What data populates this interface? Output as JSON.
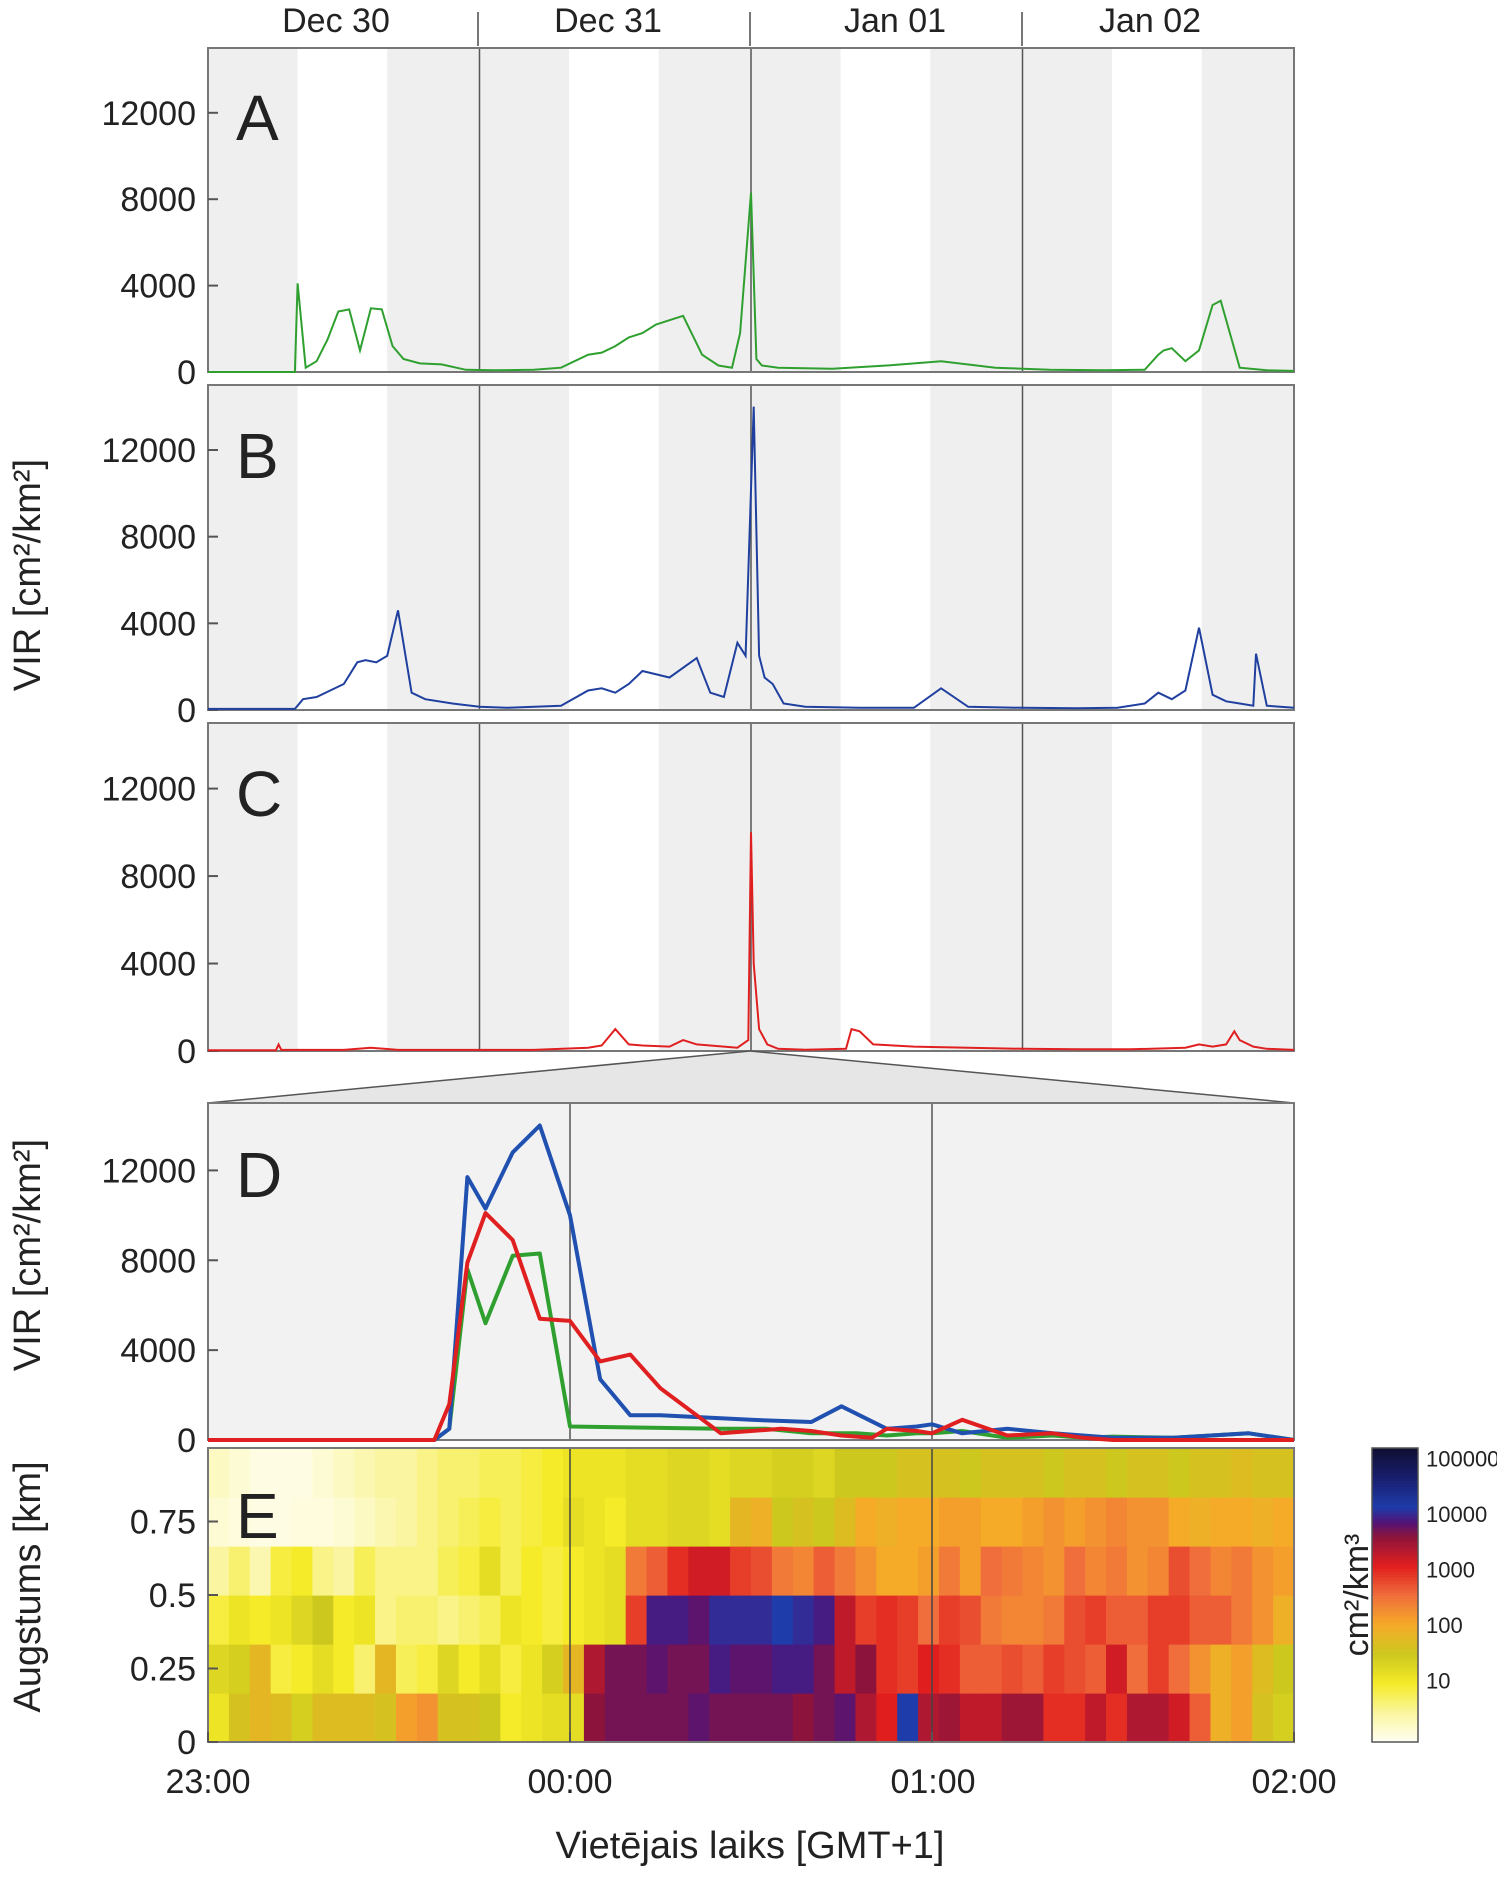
{
  "chart_data": [
    {
      "panel": "A",
      "type": "line",
      "ylim": [
        0,
        15000
      ],
      "yticks": [
        0,
        4000,
        8000,
        12000
      ],
      "x_unit": "day",
      "day_labels": [
        "Dec 30",
        "Dec 31",
        "Jan 01",
        "Jan 02"
      ],
      "shading": "alternating gray and white bands for night / day",
      "series": [
        {
          "color": "#2fa02f",
          "x": [
            0,
            0.32,
            0.33,
            0.36,
            0.4,
            0.44,
            0.48,
            0.52,
            0.56,
            0.6,
            0.64,
            0.68,
            0.72,
            0.78,
            0.86,
            0.95,
            1.05,
            1.2,
            1.3,
            1.4,
            1.45,
            1.5,
            1.55,
            1.6,
            1.65,
            1.7,
            1.75,
            1.82,
            1.88,
            1.93,
            1.96,
            2.0,
            2.02,
            2.04,
            2.1,
            2.3,
            2.5,
            2.7,
            2.9,
            3.1,
            3.3,
            3.45,
            3.5,
            3.52,
            3.55,
            3.6,
            3.65,
            3.7,
            3.73,
            3.8,
            3.9,
            4.0
          ],
          "y": [
            0,
            0,
            4100,
            200,
            500,
            1500,
            2800,
            2900,
            1000,
            2950,
            2900,
            1200,
            600,
            400,
            350,
            100,
            80,
            100,
            200,
            800,
            900,
            1200,
            1600,
            1800,
            2200,
            2400,
            2600,
            800,
            300,
            200,
            1800,
            8300,
            600,
            300,
            200,
            150,
            300,
            500,
            200,
            100,
            80,
            100,
            800,
            1000,
            1100,
            500,
            1000,
            3100,
            3300,
            200,
            80,
            50
          ]
        }
      ]
    },
    {
      "panel": "B",
      "type": "line",
      "ylim": [
        0,
        15000
      ],
      "yticks": [
        0,
        4000,
        8000,
        12000
      ],
      "series": [
        {
          "color": "#2040a0",
          "x": [
            0,
            0.32,
            0.35,
            0.4,
            0.45,
            0.5,
            0.55,
            0.58,
            0.62,
            0.66,
            0.7,
            0.75,
            0.8,
            0.9,
            1.0,
            1.1,
            1.3,
            1.4,
            1.45,
            1.5,
            1.55,
            1.6,
            1.7,
            1.8,
            1.85,
            1.9,
            1.95,
            1.98,
            2.01,
            2.03,
            2.05,
            2.08,
            2.12,
            2.2,
            2.4,
            2.6,
            2.7,
            2.8,
            3.0,
            3.2,
            3.35,
            3.45,
            3.5,
            3.55,
            3.6,
            3.65,
            3.7,
            3.75,
            3.8,
            3.85,
            3.86,
            3.9,
            4.0
          ],
          "y": [
            50,
            50,
            500,
            600,
            900,
            1200,
            2200,
            2300,
            2200,
            2500,
            4600,
            800,
            500,
            300,
            150,
            100,
            200,
            900,
            1000,
            800,
            1200,
            1800,
            1500,
            2400,
            800,
            600,
            3100,
            2500,
            14000,
            2500,
            1500,
            1200,
            300,
            150,
            100,
            100,
            1000,
            150,
            100,
            80,
            100,
            300,
            800,
            500,
            900,
            3800,
            700,
            400,
            300,
            200,
            2600,
            200,
            100
          ]
        }
      ]
    },
    {
      "panel": "C",
      "type": "line",
      "ylim": [
        0,
        15000
      ],
      "yticks": [
        0,
        4000,
        8000,
        12000
      ],
      "series": [
        {
          "color": "#e02020",
          "x": [
            0,
            0.25,
            0.26,
            0.27,
            0.5,
            0.6,
            0.7,
            1.2,
            1.4,
            1.45,
            1.5,
            1.55,
            1.6,
            1.7,
            1.75,
            1.8,
            1.9,
            1.95,
            1.99,
            2.0,
            2.01,
            2.03,
            2.06,
            2.1,
            2.2,
            2.35,
            2.37,
            2.4,
            2.45,
            2.6,
            2.8,
            3.0,
            3.2,
            3.4,
            3.6,
            3.65,
            3.7,
            3.75,
            3.78,
            3.8,
            3.85,
            3.9,
            4.0
          ],
          "y": [
            30,
            30,
            300,
            50,
            50,
            150,
            50,
            50,
            150,
            250,
            1000,
            300,
            250,
            200,
            500,
            300,
            200,
            150,
            500,
            10000,
            4000,
            1000,
            300,
            100,
            60,
            100,
            1000,
            900,
            300,
            200,
            150,
            100,
            80,
            80,
            150,
            300,
            200,
            300,
            900,
            500,
            200,
            100,
            50
          ]
        }
      ]
    },
    {
      "panel": "D",
      "type": "line",
      "xlim": [
        "23:00",
        "02:00"
      ],
      "ylim": [
        0,
        15000
      ],
      "yticks": [
        0,
        4000,
        8000,
        12000
      ],
      "ylabel": "VIR [cm²/km²]",
      "series": [
        {
          "color": "#2fa02f",
          "x": [
            0,
            50,
            60,
            75,
            80,
            86,
            92,
            101,
            110,
            120,
            170,
            185,
            200,
            215,
            225,
            235,
            240,
            250,
            265,
            280,
            290,
            300,
            320,
            345,
            360
          ],
          "y": [
            0,
            0,
            0,
            0,
            500,
            7600,
            5200,
            8200,
            8300,
            600,
            500,
            500,
            300,
            300,
            200,
            300,
            300,
            400,
            100,
            200,
            100,
            150,
            100,
            300,
            0
          ]
        },
        {
          "color": "#2050b0",
          "x": [
            0,
            60,
            75,
            80,
            86,
            92,
            101,
            110,
            120,
            130,
            135,
            140,
            150,
            180,
            200,
            210,
            225,
            235,
            240,
            250,
            265,
            280,
            290,
            300,
            320,
            345,
            360
          ],
          "y": [
            0,
            0,
            0,
            500,
            11700,
            10300,
            12800,
            14000,
            10000,
            2700,
            1900,
            1100,
            1100,
            900,
            800,
            1500,
            500,
            600,
            700,
            300,
            500,
            300,
            200,
            100,
            100,
            300,
            0
          ]
        },
        {
          "color": "#e02020",
          "x": [
            0,
            60,
            75,
            80,
            86,
            92,
            101,
            110,
            120,
            130,
            140,
            150,
            170,
            180,
            190,
            200,
            210,
            220,
            225,
            235,
            240,
            250,
            265,
            280,
            290,
            300,
            320,
            345,
            360
          ],
          "y": [
            0,
            0,
            0,
            1600,
            7900,
            10100,
            8900,
            5400,
            5300,
            3500,
            3800,
            2300,
            300,
            400,
            500,
            400,
            200,
            100,
            500,
            400,
            300,
            900,
            200,
            300,
            100,
            0,
            0,
            0,
            0
          ]
        }
      ]
    },
    {
      "panel": "E",
      "type": "heatmap",
      "xlim": [
        "23:00",
        "02:00"
      ],
      "xticks": [
        "23:00",
        "00:00",
        "01:00",
        "02:00"
      ],
      "xlabel": "Vietējais laiks [GMT+1]",
      "ylabel": "Augstums [km]",
      "yticks": [
        "0",
        "0.25",
        "0.5",
        "0.75"
      ],
      "colorbar": {
        "label": "cm²/km³",
        "ticks": [
          "100000",
          "10000",
          "1000",
          "100",
          "10"
        ],
        "scale": "log"
      },
      "rows_bottom_to_top": [
        [
          1.1,
          1.6,
          1.8,
          1.7,
          1.4,
          1.7,
          1.7,
          1.7,
          1.6,
          2.1,
          2.2,
          1.6,
          1.6,
          1.5,
          1.0,
          1.1,
          1.2,
          1.2,
          3.5,
          3.6,
          3.6,
          3.6,
          3.6,
          3.7,
          3.6,
          3.6,
          3.6,
          3.6,
          3.5,
          3.6,
          3.7,
          3.3,
          3.0,
          4.0,
          3.3,
          3.4,
          3.2,
          3.2,
          3.4,
          3.4,
          2.9,
          2.9,
          3.2,
          2.9,
          3.3,
          3.3,
          3.1,
          2.6,
          1.9,
          2.1,
          1.6,
          1.4
        ],
        [
          1.3,
          1.4,
          1.8,
          0.9,
          1.0,
          1.2,
          1.0,
          0.7,
          1.8,
          0.8,
          0.9,
          1.3,
          1.0,
          1.2,
          0.9,
          1.1,
          1.4,
          1.8,
          3.3,
          3.6,
          3.6,
          3.7,
          3.6,
          3.6,
          3.8,
          3.7,
          3.7,
          3.8,
          3.8,
          3.6,
          3.2,
          3.5,
          2.9,
          2.8,
          3.0,
          2.9,
          2.6,
          2.6,
          2.7,
          2.6,
          2.8,
          2.7,
          2.6,
          3.1,
          2.5,
          2.8,
          2.5,
          2.2,
          1.9,
          2.1,
          1.7,
          1.5
        ],
        [
          0.9,
          1.1,
          1.0,
          1.1,
          1.3,
          1.5,
          1.0,
          1.1,
          0.6,
          0.7,
          0.7,
          0.6,
          0.7,
          0.8,
          1.1,
          1.0,
          0.9,
          1.0,
          1.1,
          1.2,
          2.8,
          3.8,
          3.8,
          3.7,
          3.9,
          3.9,
          3.9,
          4.0,
          3.9,
          3.8,
          3.2,
          2.8,
          2.9,
          2.8,
          2.5,
          2.8,
          2.7,
          2.4,
          2.3,
          2.3,
          2.4,
          2.7,
          2.8,
          2.6,
          2.6,
          2.8,
          2.8,
          2.6,
          2.6,
          2.4,
          2.2,
          1.9
        ],
        [
          0.5,
          0.7,
          0.4,
          0.9,
          1.0,
          0.6,
          0.5,
          0.8,
          0.6,
          0.6,
          0.6,
          0.8,
          0.9,
          1.2,
          0.8,
          1.0,
          0.9,
          1.0,
          1.1,
          1.2,
          2.4,
          2.6,
          2.9,
          3.1,
          3.1,
          2.8,
          2.7,
          2.4,
          2.3,
          2.6,
          2.4,
          2.2,
          2.0,
          2.0,
          2.1,
          2.4,
          2.1,
          2.5,
          2.4,
          2.3,
          2.2,
          2.5,
          2.3,
          2.4,
          2.2,
          2.3,
          2.7,
          2.5,
          2.3,
          2.4,
          2.2,
          2.1
        ],
        [
          0.2,
          0.15,
          0.1,
          0.1,
          0.15,
          0.15,
          0.2,
          0.3,
          0.4,
          0.5,
          0.6,
          0.7,
          0.8,
          0.9,
          0.8,
          0.9,
          1.0,
          1.2,
          1.1,
          1.0,
          1.2,
          1.2,
          1.3,
          1.3,
          1.2,
          1.8,
          1.9,
          1.5,
          1.6,
          1.5,
          1.7,
          2.0,
          1.9,
          2.0,
          2.0,
          2.1,
          2.1,
          2.0,
          2.0,
          2.1,
          2.2,
          2.1,
          2.2,
          2.3,
          2.2,
          2.2,
          2.0,
          1.9,
          2.0,
          2.0,
          1.9,
          2.0
        ],
        [
          0.3,
          0.2,
          0.1,
          0.1,
          0.1,
          0.2,
          0.3,
          0.4,
          0.5,
          0.5,
          0.6,
          0.7,
          0.7,
          0.8,
          0.8,
          0.9,
          1.0,
          1.1,
          1.1,
          1.1,
          1.2,
          1.2,
          1.3,
          1.3,
          1.2,
          1.3,
          1.3,
          1.4,
          1.4,
          1.3,
          1.5,
          1.5,
          1.5,
          1.6,
          1.6,
          1.6,
          1.5,
          1.6,
          1.6,
          1.6,
          1.5,
          1.6,
          1.6,
          1.5,
          1.6,
          1.6,
          1.5,
          1.6,
          1.6,
          1.7,
          1.6,
          1.6
        ]
      ]
    }
  ],
  "labels": {
    "panel_letters": [
      "A",
      "B",
      "C",
      "D",
      "E"
    ],
    "ylabel_main": "VIR [cm²/km²]",
    "ylabel_zoom": "VIR [cm²/km²]",
    "ylabel_height": "Augstums [km]",
    "xlabel": "Vietējais laiks [GMT+1]",
    "colorbar_label": "cm²/km³"
  },
  "colors": {
    "green": "#2fa02f",
    "blue": "#2050b0",
    "red": "#e02020",
    "night_band": "#efefef",
    "frame": "#777777"
  }
}
